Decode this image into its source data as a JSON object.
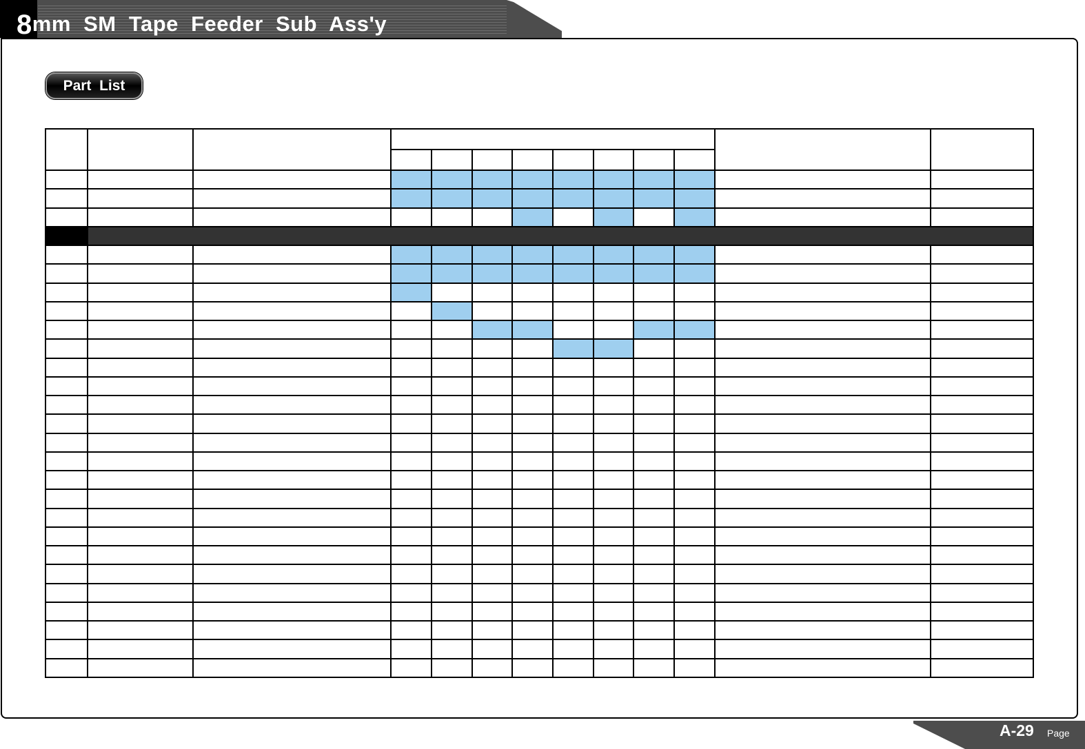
{
  "header": {
    "title_first": "8",
    "title_rest": "mm  SM  Tape  Feeder  Sub  Ass'y"
  },
  "part_list_label": "Part  List",
  "footer": {
    "page_number": "A-29",
    "page_label": "Page"
  },
  "colors": {
    "highlight": "#9fcfef",
    "section_bar": "#333333",
    "header_bar": "#4d4d4d"
  },
  "table": {
    "column_count": 13,
    "highlight_column_count": 8,
    "rows": [
      {
        "type": "data",
        "highlight": [
          1,
          1,
          1,
          1,
          1,
          1,
          1,
          1
        ]
      },
      {
        "type": "data",
        "highlight": [
          1,
          1,
          1,
          1,
          1,
          1,
          1,
          1
        ]
      },
      {
        "type": "data",
        "highlight": [
          0,
          0,
          0,
          1,
          0,
          1,
          0,
          1
        ]
      },
      {
        "type": "section"
      },
      {
        "type": "data",
        "highlight": [
          1,
          1,
          1,
          1,
          1,
          1,
          1,
          1
        ]
      },
      {
        "type": "data",
        "highlight": [
          1,
          1,
          1,
          1,
          1,
          1,
          1,
          1
        ]
      },
      {
        "type": "data",
        "highlight": [
          1,
          0,
          0,
          0,
          0,
          0,
          0,
          0
        ]
      },
      {
        "type": "data",
        "highlight": [
          0,
          1,
          0,
          0,
          0,
          0,
          0,
          0
        ]
      },
      {
        "type": "data",
        "highlight": [
          0,
          0,
          1,
          1,
          0,
          0,
          1,
          1
        ]
      },
      {
        "type": "data",
        "highlight": [
          0,
          0,
          0,
          0,
          1,
          1,
          0,
          0
        ]
      },
      {
        "type": "data",
        "highlight": [
          0,
          0,
          0,
          0,
          0,
          0,
          0,
          0
        ]
      },
      {
        "type": "data",
        "highlight": [
          0,
          0,
          0,
          0,
          0,
          0,
          0,
          0
        ]
      },
      {
        "type": "data",
        "highlight": [
          0,
          0,
          0,
          0,
          0,
          0,
          0,
          0
        ]
      },
      {
        "type": "data",
        "highlight": [
          0,
          0,
          0,
          0,
          0,
          0,
          0,
          0
        ]
      },
      {
        "type": "data",
        "highlight": [
          0,
          0,
          0,
          0,
          0,
          0,
          0,
          0
        ]
      },
      {
        "type": "data",
        "highlight": [
          0,
          0,
          0,
          0,
          0,
          0,
          0,
          0
        ]
      },
      {
        "type": "data",
        "highlight": [
          0,
          0,
          0,
          0,
          0,
          0,
          0,
          0
        ]
      },
      {
        "type": "data",
        "highlight": [
          0,
          0,
          0,
          0,
          0,
          0,
          0,
          0
        ]
      },
      {
        "type": "data",
        "highlight": [
          0,
          0,
          0,
          0,
          0,
          0,
          0,
          0
        ]
      },
      {
        "type": "data",
        "highlight": [
          0,
          0,
          0,
          0,
          0,
          0,
          0,
          0
        ]
      },
      {
        "type": "data",
        "highlight": [
          0,
          0,
          0,
          0,
          0,
          0,
          0,
          0
        ]
      },
      {
        "type": "data",
        "highlight": [
          0,
          0,
          0,
          0,
          0,
          0,
          0,
          0
        ]
      },
      {
        "type": "data",
        "highlight": [
          0,
          0,
          0,
          0,
          0,
          0,
          0,
          0
        ]
      },
      {
        "type": "data",
        "highlight": [
          0,
          0,
          0,
          0,
          0,
          0,
          0,
          0
        ]
      },
      {
        "type": "data",
        "highlight": [
          0,
          0,
          0,
          0,
          0,
          0,
          0,
          0
        ]
      },
      {
        "type": "data",
        "highlight": [
          0,
          0,
          0,
          0,
          0,
          0,
          0,
          0
        ]
      },
      {
        "type": "data",
        "highlight": [
          0,
          0,
          0,
          0,
          0,
          0,
          0,
          0
        ]
      }
    ]
  }
}
